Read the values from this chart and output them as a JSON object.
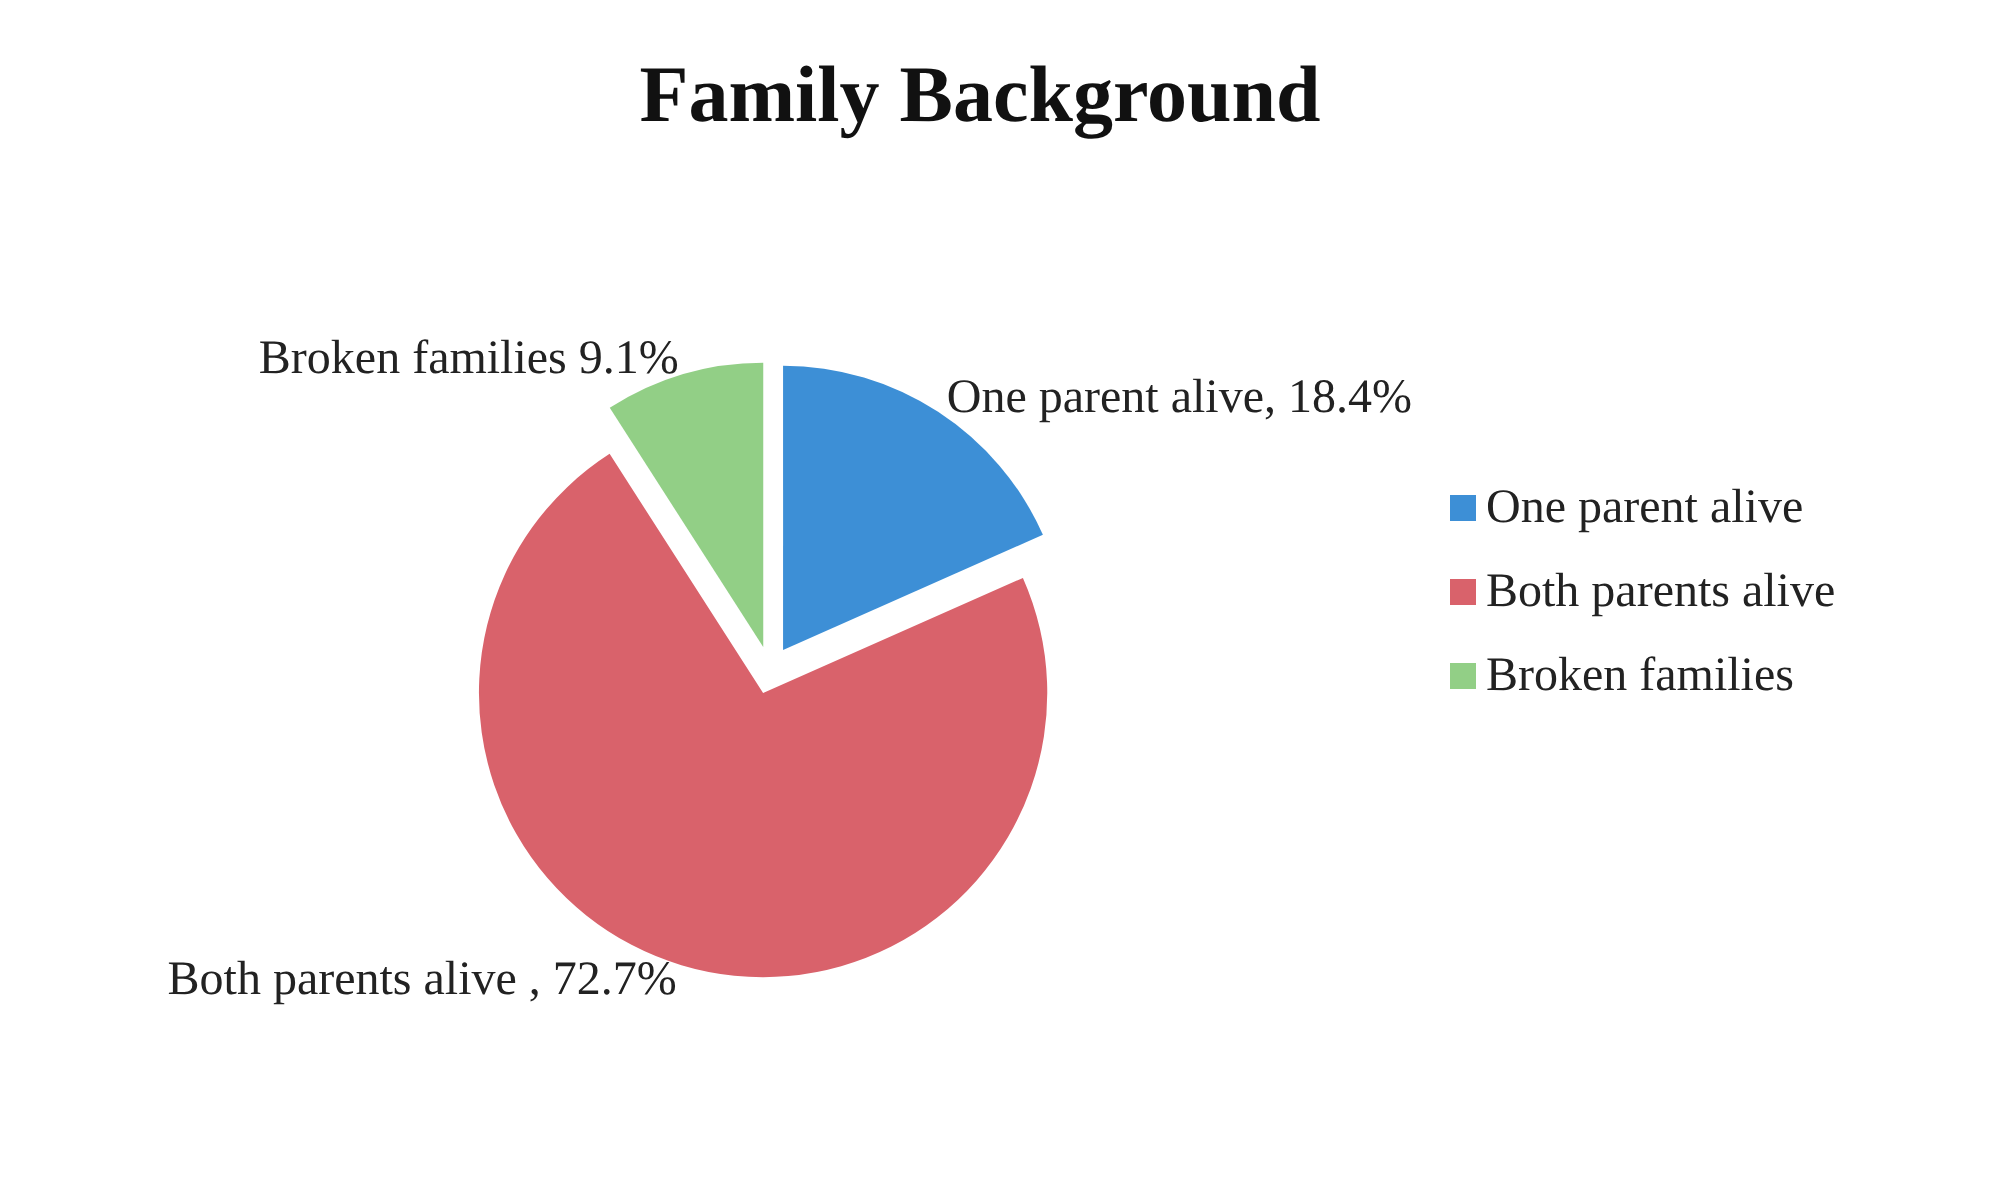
{
  "chart_data": {
    "type": "pie",
    "title": "Family Background",
    "categories": [
      "One parent alive",
      "Both parents alive",
      "Broken families"
    ],
    "values": [
      18.4,
      72.7,
      9.1
    ],
    "colors": [
      "#3d8fd6",
      "#d9626b",
      "#92cf86"
    ],
    "value_labels": [
      "One parent alive, 18.4%",
      "Both parents alive , 72.7%",
      "Broken families 9.1%"
    ],
    "legend": "right"
  }
}
